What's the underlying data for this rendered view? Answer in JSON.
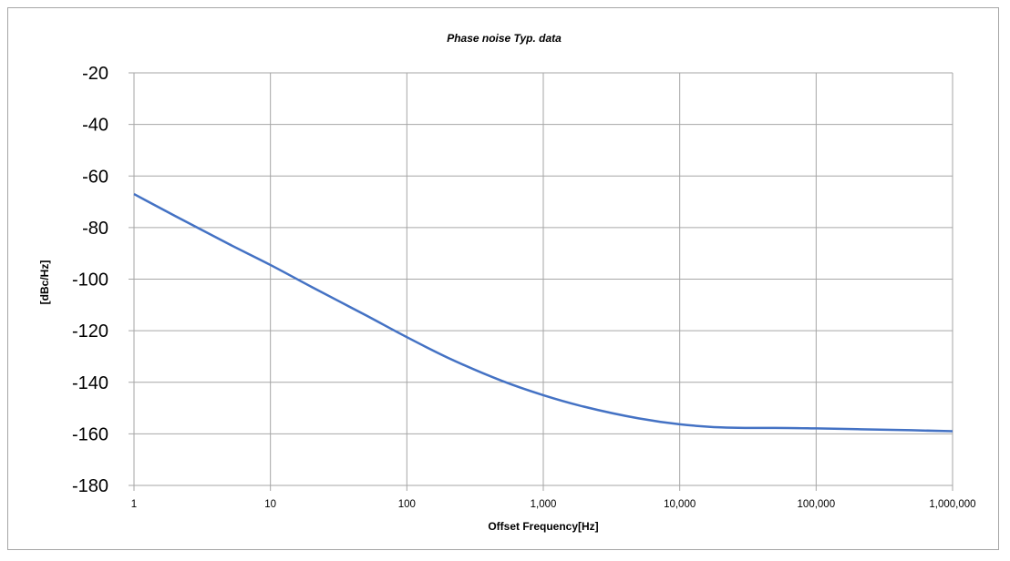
{
  "chart_data": {
    "type": "line",
    "title": "Phase noise Typ. data",
    "xlabel": "Offset Frequency[Hz]",
    "ylabel": "[dBc/Hz]",
    "xscale": "log",
    "xlim": [
      1,
      1000000
    ],
    "ylim": [
      -180,
      -20
    ],
    "x_tick_labels": [
      "1",
      "10",
      "100",
      "1,000",
      "10,000",
      "100,000",
      "1,000,000"
    ],
    "y_tick_labels": [
      "-20",
      "-40",
      "-60",
      "-80",
      "-100",
      "-120",
      "-140",
      "-160",
      "-180"
    ],
    "grid": true,
    "legend": "none",
    "series": [
      {
        "color": "#4472c4",
        "x": [
          1,
          2,
          5,
          10,
          20,
          50,
          100,
          200,
          500,
          1000,
          2000,
          5000,
          10000,
          20000,
          30000,
          50000,
          100000,
          200000,
          500000,
          1000000
        ],
        "y": [
          -67,
          -75.5,
          -86.5,
          -94.5,
          -103,
          -114,
          -122.5,
          -130.5,
          -139.5,
          -145,
          -149.5,
          -154,
          -156.3,
          -157.5,
          -157.7,
          -157.7,
          -157.9,
          -158.2,
          -158.6,
          -159
        ]
      }
    ]
  }
}
